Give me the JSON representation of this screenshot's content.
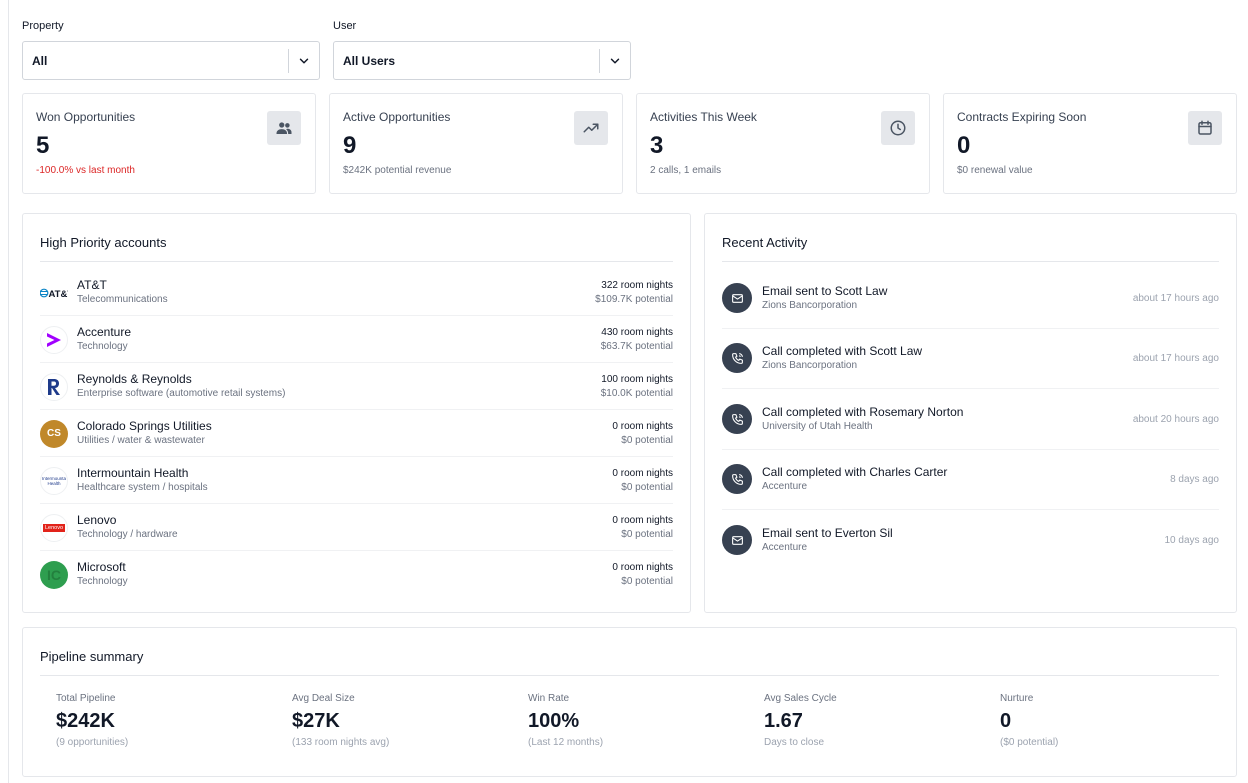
{
  "filters": {
    "property": {
      "label": "Property",
      "value": "All"
    },
    "user": {
      "label": "User",
      "value": "All Users"
    }
  },
  "stats": [
    {
      "title": "Won Opportunities",
      "value": "5",
      "sub": "-100.0% vs last month",
      "icon": "users-icon"
    },
    {
      "title": "Active Opportunities",
      "value": "9",
      "sub": "$242K potential revenue",
      "icon": "trending-up-icon"
    },
    {
      "title": "Activities This Week",
      "value": "3",
      "sub": "2 calls, 1 emails",
      "icon": "clock-icon"
    },
    {
      "title": "Contracts Expiring Soon",
      "value": "0",
      "sub": "$0 renewal value",
      "icon": "calendar-icon"
    }
  ],
  "accounts": {
    "title": "High Priority accounts",
    "items": [
      {
        "name": "AT&T",
        "category": "Telecommunications",
        "nights": "322 room nights",
        "potential": "$109.7K potential",
        "logo": "AT&T"
      },
      {
        "name": "Accenture",
        "category": "Technology",
        "nights": "430 room nights",
        "potential": "$63.7K potential",
        "logo": ">"
      },
      {
        "name": "Reynolds & Reynolds",
        "category": "Enterprise software (automotive retail systems)",
        "nights": "100 room nights",
        "potential": "$10.0K potential",
        "logo": "R"
      },
      {
        "name": "Colorado Springs Utilities",
        "category": "Utilities / water & wastewater",
        "nights": "0 room nights",
        "potential": "$0 potential",
        "logo": "CS"
      },
      {
        "name": "Intermountain Health",
        "category": "Healthcare system / hospitals",
        "nights": "0 room nights",
        "potential": "$0 potential",
        "logo": "Intermountain Health"
      },
      {
        "name": "Lenovo",
        "category": "Technology / hardware",
        "nights": "0 room nights",
        "potential": "$0 potential",
        "logo": "Lenovo"
      },
      {
        "name": "Microsoft",
        "category": "Technology",
        "nights": "0 room nights",
        "potential": "$0 potential",
        "logo": "IC"
      }
    ]
  },
  "activity": {
    "title": "Recent Activity",
    "items": [
      {
        "title": "Email sent to Scott Law",
        "org": "Zions Bancorporation",
        "time": "about 17 hours ago",
        "icon": "mail-icon"
      },
      {
        "title": "Call completed with Scott Law",
        "org": "Zions Bancorporation",
        "time": "about 17 hours ago",
        "icon": "phone-icon"
      },
      {
        "title": "Call completed with Rosemary Norton",
        "org": "University of Utah Health",
        "time": "about 20 hours ago",
        "icon": "phone-icon"
      },
      {
        "title": "Call completed with Charles Carter",
        "org": "Accenture",
        "time": "8 days ago",
        "icon": "phone-icon"
      },
      {
        "title": "Email sent to Everton Sil",
        "org": "Accenture",
        "time": "10 days ago",
        "icon": "mail-icon"
      }
    ]
  },
  "pipeline": {
    "title": "Pipeline summary",
    "items": [
      {
        "label": "Total Pipeline",
        "value": "$242K",
        "sub": "(9 opportunities)"
      },
      {
        "label": "Avg Deal Size",
        "value": "$27K",
        "sub": "(133 room nights avg)"
      },
      {
        "label": "Win Rate",
        "value": "100%",
        "sub": "(Last 12 months)"
      },
      {
        "label": "Avg Sales Cycle",
        "value": "1.67",
        "sub": "Days to close"
      },
      {
        "label": "Nurture",
        "value": "0",
        "sub": "($0 potential)"
      }
    ]
  },
  "colors": {
    "negative": "#dc2626",
    "accenture": "#a100ff",
    "reynolds": "#1e3a8a",
    "colorado": "#c0882a",
    "lenovo": "#e2231a",
    "microsoft": "#2e9e4f",
    "att": "#0a84c6"
  }
}
